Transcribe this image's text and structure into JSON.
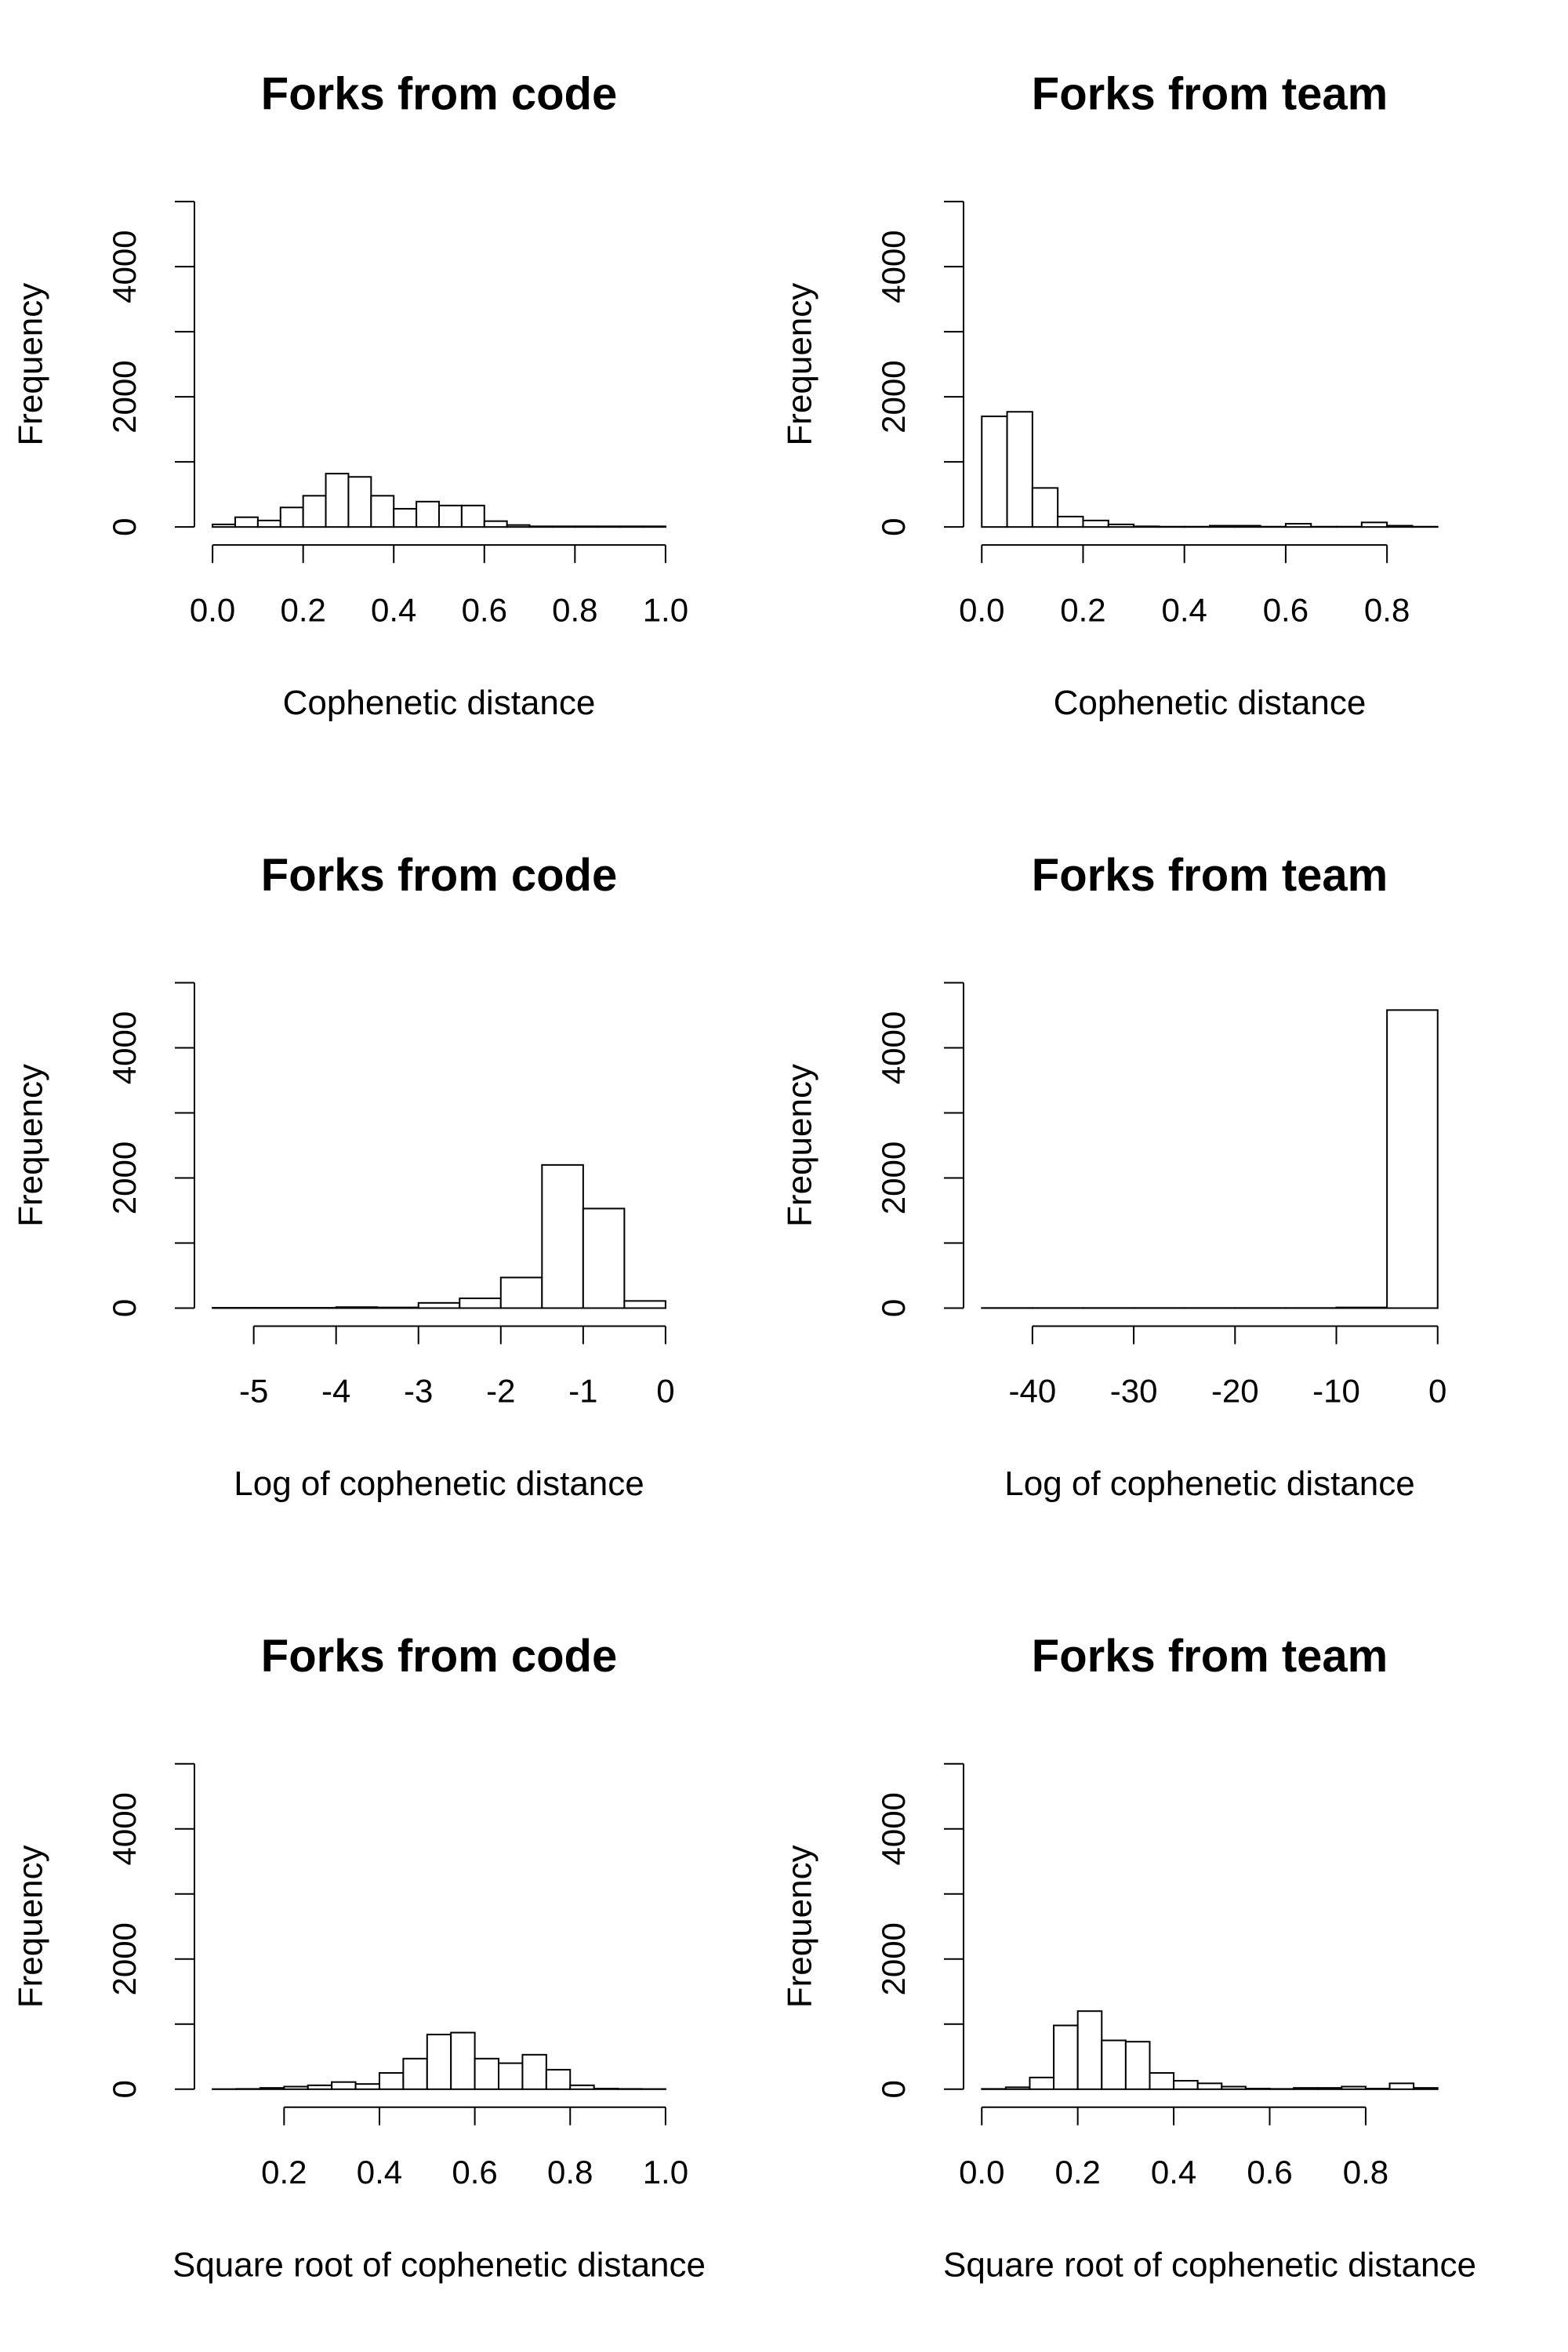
{
  "chart_data": [
    {
      "type": "histogram",
      "title": "Forks from code",
      "xlabel": "Cophenetic distance",
      "ylabel": "Frequency",
      "bins": [
        0,
        0.05,
        0.1,
        0.15,
        0.2,
        0.25,
        0.3,
        0.35,
        0.4,
        0.45,
        0.5,
        0.55,
        0.6,
        0.65,
        0.7,
        0.75,
        0.8,
        0.85,
        0.9,
        0.95,
        1.0
      ],
      "counts": [
        40,
        150,
        100,
        300,
        480,
        820,
        770,
        480,
        280,
        390,
        330,
        330,
        90,
        30,
        10,
        10,
        10,
        10,
        10,
        10
      ],
      "xlim": [
        0,
        1.0
      ],
      "xticks": [
        {
          "value": 0,
          "label": "0.0"
        },
        0.2,
        0.4,
        0.6,
        0.8,
        {
          "value": 1,
          "label": "1.0"
        }
      ],
      "ylim": [
        0,
        5000
      ],
      "yticks": [
        0,
        2000,
        4000
      ],
      "minor_yticks": [
        1000,
        3000,
        5000
      ],
      "color": "#ffffff",
      "edgecolor": "#000000"
    },
    {
      "type": "histogram",
      "title": "Forks from team",
      "xlabel": "Cophenetic distance",
      "ylabel": "Frequency",
      "bins": [
        0,
        0.05,
        0.1,
        0.15,
        0.2,
        0.25,
        0.3,
        0.35,
        0.4,
        0.45,
        0.5,
        0.55,
        0.6,
        0.65,
        0.7,
        0.75,
        0.8,
        0.85,
        0.9
      ],
      "counts": [
        1700,
        1770,
        600,
        160,
        100,
        40,
        10,
        5,
        5,
        20,
        20,
        5,
        50,
        5,
        5,
        70,
        20,
        5
      ],
      "xlim": [
        0,
        0.9
      ],
      "xticks": [
        {
          "value": 0,
          "label": "0.0"
        },
        0.2,
        0.4,
        0.6,
        0.8
      ],
      "ylim": [
        0,
        5000
      ],
      "yticks": [
        0,
        2000,
        4000
      ],
      "minor_yticks": [
        1000,
        3000,
        5000
      ],
      "color": "#ffffff",
      "edgecolor": "#000000"
    },
    {
      "type": "histogram",
      "title": "Forks from code",
      "xlabel": "Log of cophenetic distance",
      "ylabel": "Frequency",
      "bins": [
        -5.5,
        -5,
        -4.5,
        -4,
        -3.5,
        -3,
        -2.5,
        -2,
        -1.5,
        -1,
        -0.5,
        0
      ],
      "counts": [
        5,
        5,
        5,
        15,
        10,
        80,
        150,
        470,
        2200,
        1530,
        110
      ],
      "xlim": [
        -5.5,
        0
      ],
      "xticks": [
        -5,
        -4,
        -3,
        -2,
        -1,
        0
      ],
      "ylim": [
        0,
        5000
      ],
      "yticks": [
        0,
        2000,
        4000
      ],
      "minor_yticks": [
        1000,
        3000,
        5000
      ],
      "color": "#ffffff",
      "edgecolor": "#000000"
    },
    {
      "type": "histogram",
      "title": "Forks from team",
      "xlabel": "Log of cophenetic distance",
      "ylabel": "Frequency",
      "bins": [
        -45,
        -40,
        -35,
        -30,
        -25,
        -20,
        -15,
        -10,
        -5,
        0
      ],
      "counts": [
        2,
        2,
        2,
        2,
        2,
        2,
        2,
        10,
        4580
      ],
      "xlim": [
        -45,
        0
      ],
      "xticks": [
        -40,
        -30,
        -20,
        -10,
        0
      ],
      "ylim": [
        0,
        5000
      ],
      "yticks": [
        0,
        2000,
        4000
      ],
      "minor_yticks": [
        1000,
        3000,
        5000
      ],
      "color": "#ffffff",
      "edgecolor": "#000000"
    },
    {
      "type": "histogram",
      "title": "Forks from code",
      "xlabel": "Square root of cophenetic distance",
      "ylabel": "Frequency",
      "bins": [
        0.05,
        0.1,
        0.15,
        0.2,
        0.25,
        0.3,
        0.35,
        0.4,
        0.45,
        0.5,
        0.55,
        0.6,
        0.65,
        0.7,
        0.75,
        0.8,
        0.85,
        0.9,
        0.95,
        1.0
      ],
      "counts": [
        2,
        5,
        20,
        40,
        60,
        110,
        80,
        250,
        470,
        840,
        870,
        470,
        400,
        530,
        300,
        60,
        10,
        5,
        3
      ],
      "xlim": [
        0.05,
        1.0
      ],
      "xticks": [
        0.2,
        0.4,
        0.6,
        0.8,
        {
          "value": 1,
          "label": "1.0"
        }
      ],
      "ylim": [
        0,
        5000
      ],
      "yticks": [
        0,
        2000,
        4000
      ],
      "minor_yticks": [
        1000,
        3000,
        5000
      ],
      "color": "#ffffff",
      "edgecolor": "#000000"
    },
    {
      "type": "histogram",
      "title": "Forks from team",
      "xlabel": "Square root of cophenetic distance",
      "ylabel": "Frequency",
      "bins": [
        0,
        0.05,
        0.1,
        0.15,
        0.2,
        0.25,
        0.3,
        0.35,
        0.4,
        0.45,
        0.5,
        0.55,
        0.6,
        0.65,
        0.7,
        0.75,
        0.8,
        0.85,
        0.9,
        0.95
      ],
      "counts": [
        5,
        30,
        180,
        980,
        1200,
        750,
        730,
        250,
        130,
        90,
        40,
        10,
        5,
        20,
        20,
        40,
        10,
        90,
        20
      ],
      "xlim": [
        0,
        0.95
      ],
      "xticks": [
        {
          "value": 0,
          "label": "0.0"
        },
        0.2,
        0.4,
        0.6,
        0.8
      ],
      "ylim": [
        0,
        5000
      ],
      "yticks": [
        0,
        2000,
        4000
      ],
      "minor_yticks": [
        1000,
        3000,
        5000
      ],
      "color": "#ffffff",
      "edgecolor": "#000000"
    }
  ]
}
